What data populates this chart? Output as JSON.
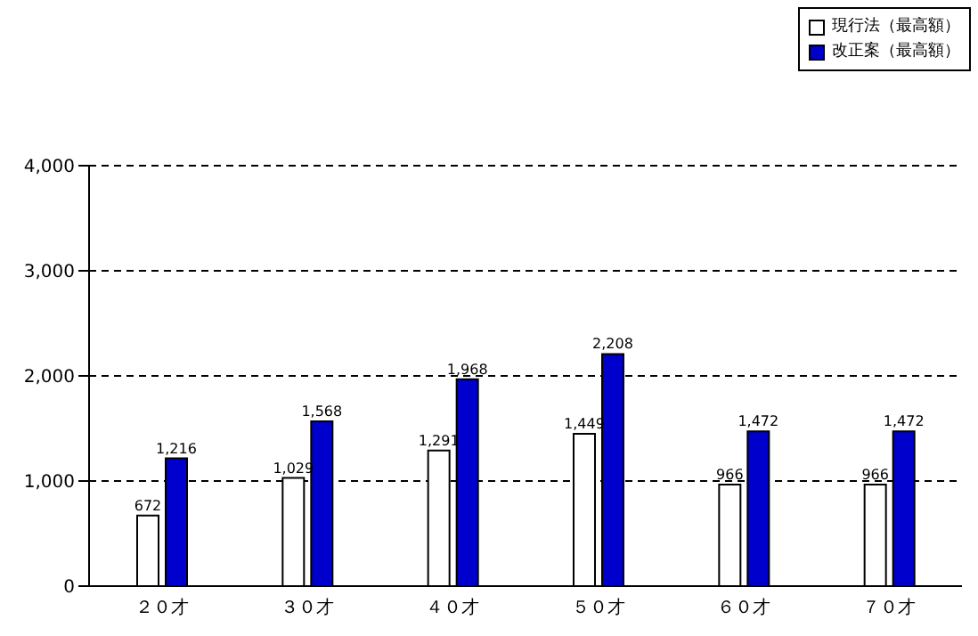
{
  "chart_data": {
    "type": "bar",
    "categories": [
      "２０才",
      "３０才",
      "４０才",
      "５０才",
      "６０才",
      "７０才"
    ],
    "series": [
      {
        "name": "現行法（最高額）",
        "color": "#ffffff",
        "values": [
          672,
          1029,
          1291,
          1449,
          966,
          966
        ],
        "value_labels": [
          "672",
          "1,029",
          "1,291",
          "1,449",
          "966",
          "966"
        ]
      },
      {
        "name": "改正案（最高額）",
        "color": "#0000cc",
        "values": [
          1216,
          1568,
          1968,
          2208,
          1472,
          1472
        ],
        "value_labels": [
          "1,216",
          "1,568",
          "1,968",
          "2,208",
          "1,472",
          "1,472"
        ]
      }
    ],
    "ylim": [
      0,
      4000
    ],
    "yticks": [
      {
        "value": 0,
        "label": "0"
      },
      {
        "value": 1000,
        "label": "1,000"
      },
      {
        "value": 2000,
        "label": "2,000"
      },
      {
        "value": 3000,
        "label": "3,000"
      },
      {
        "value": 4000,
        "label": "4,000"
      }
    ],
    "grid": "y",
    "legend": "top right"
  }
}
